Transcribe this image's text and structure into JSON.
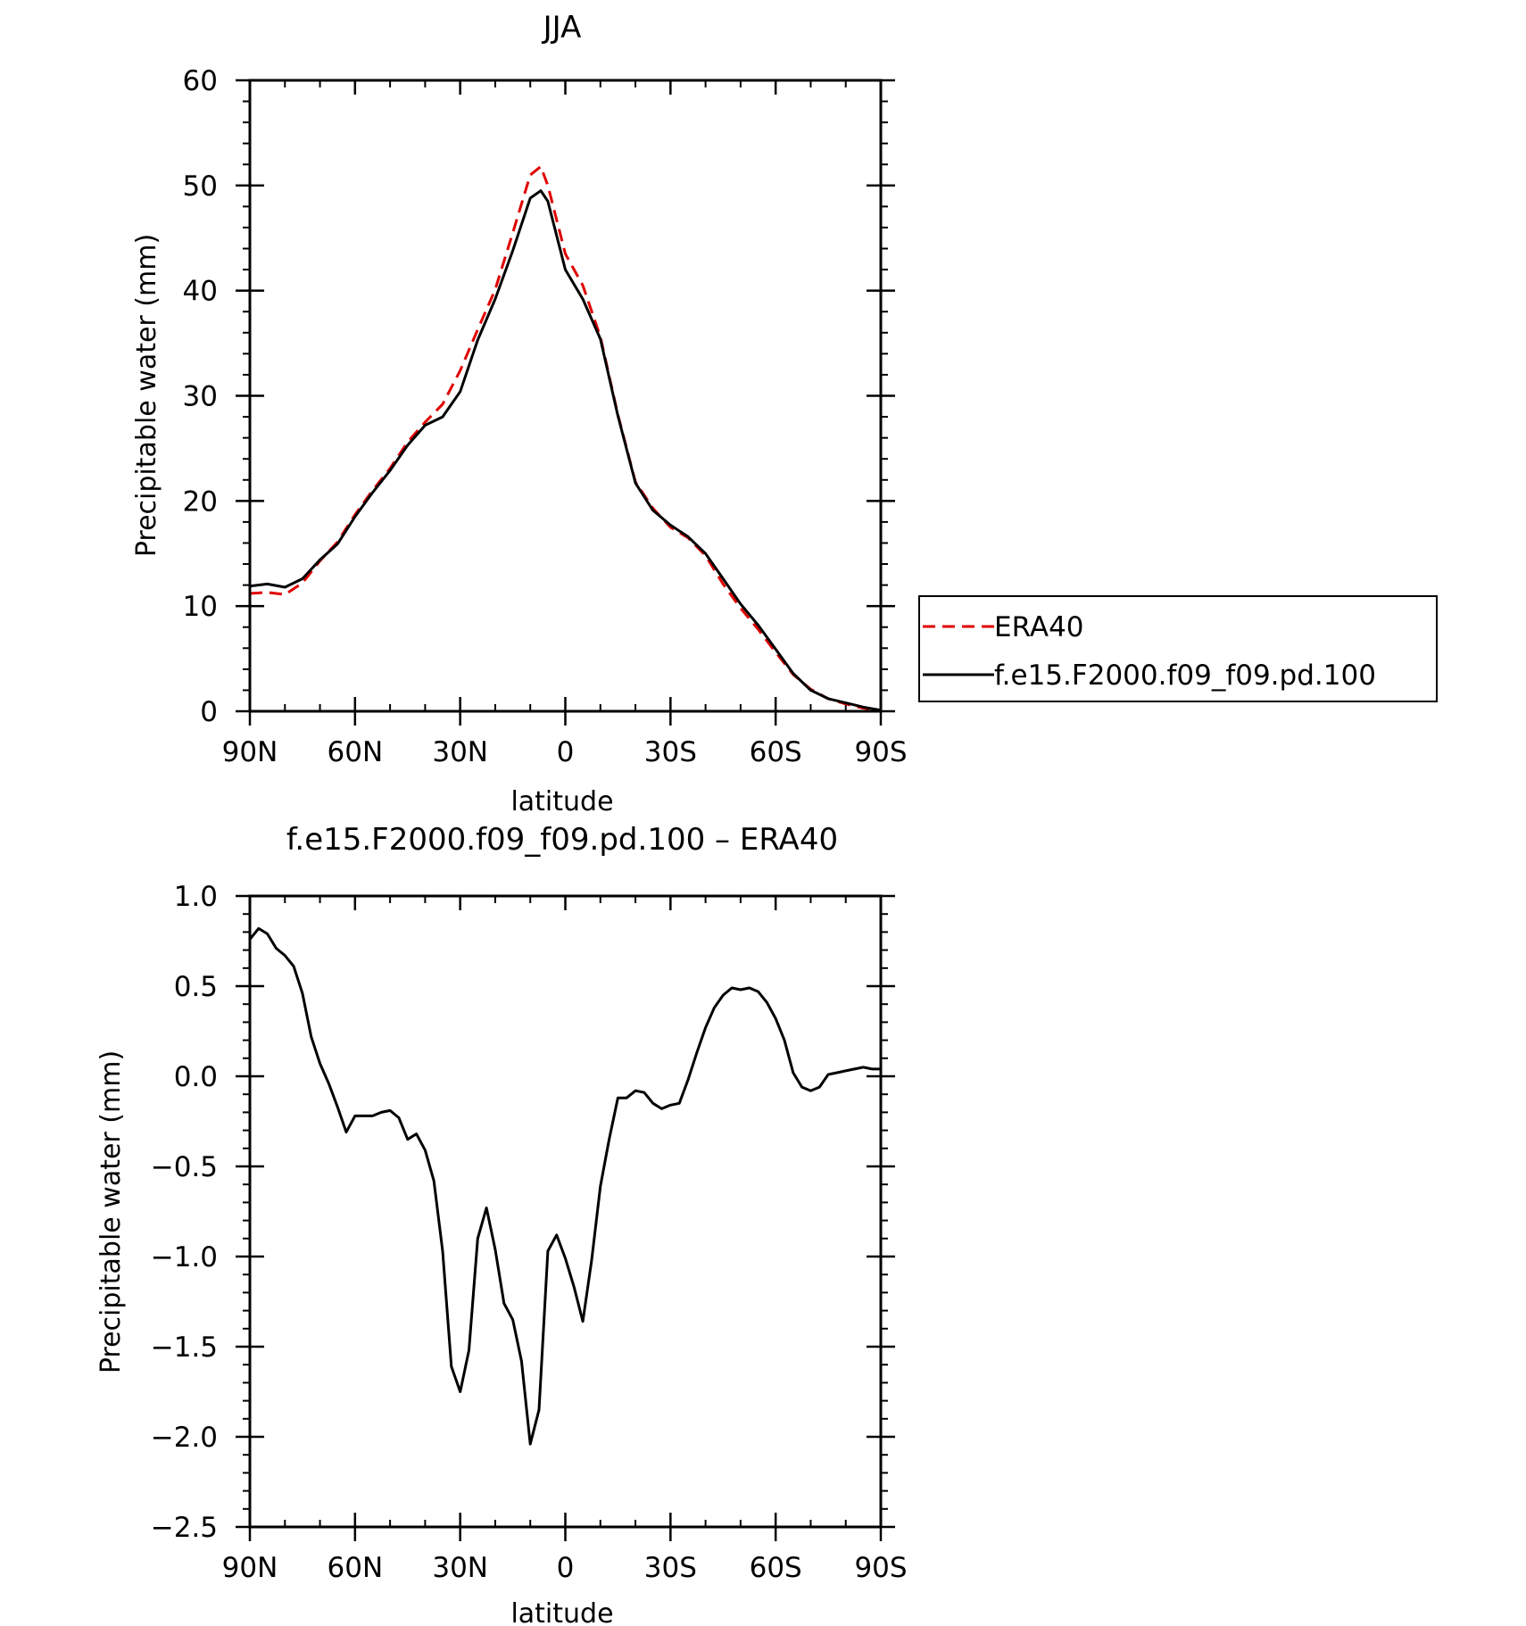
{
  "chart_data": [
    {
      "type": "line",
      "title": "JJA",
      "xlabel": "latitude",
      "ylabel": "Precipitable water (mm)",
      "xlim": [
        90,
        -90
      ],
      "ylim": [
        0,
        60
      ],
      "x_ticks": [
        90,
        60,
        30,
        0,
        -30,
        -60,
        -90
      ],
      "x_tick_labels": [
        "90N",
        "60N",
        "30N",
        "0",
        "30S",
        "60S",
        "90S"
      ],
      "y_ticks": [
        0,
        10,
        20,
        30,
        40,
        50,
        60
      ],
      "y_tick_labels": [
        "0",
        "10",
        "20",
        "30",
        "40",
        "50",
        "60"
      ],
      "legend": "outside-right",
      "grid": false,
      "series": [
        {
          "name": "ERA40",
          "color": "#e00000",
          "style": "dashed",
          "x": [
            90,
            85,
            80,
            75,
            70,
            65,
            60,
            55,
            50,
            45,
            40,
            35,
            30,
            25,
            20,
            15,
            10,
            7,
            5,
            0,
            -5,
            -10,
            -15,
            -20,
            -25,
            -30,
            -35,
            -40,
            -45,
            -50,
            -55,
            -60,
            -65,
            -70,
            -75,
            -80,
            -85,
            -90
          ],
          "y": [
            11.2,
            11.3,
            11.1,
            12.2,
            14.3,
            16.1,
            18.7,
            21.0,
            23.1,
            25.6,
            27.5,
            29.2,
            32.4,
            36.3,
            40.1,
            45.5,
            51.0,
            51.8,
            50.0,
            43.5,
            40.5,
            35.6,
            28.2,
            21.8,
            19.3,
            17.5,
            16.5,
            14.8,
            12.1,
            9.8,
            7.8,
            5.6,
            3.5,
            2.1,
            1.2,
            0.7,
            0.3,
            0.1
          ]
        },
        {
          "name": "f.e15.F2000.f09_f09.pd.100",
          "color": "#000000",
          "style": "solid",
          "x": [
            90,
            85,
            80,
            75,
            70,
            65,
            60,
            55,
            50,
            45,
            40,
            35,
            30,
            25,
            20,
            15,
            10,
            7,
            5,
            0,
            -5,
            -10,
            -15,
            -20,
            -25,
            -30,
            -35,
            -40,
            -45,
            -50,
            -55,
            -60,
            -65,
            -70,
            -75,
            -80,
            -85,
            -90
          ],
          "y": [
            11.9,
            12.1,
            11.8,
            12.6,
            14.4,
            15.9,
            18.5,
            20.8,
            22.9,
            25.3,
            27.2,
            28.0,
            30.4,
            35.3,
            39.2,
            43.8,
            48.8,
            49.5,
            48.5,
            42.0,
            39.2,
            35.4,
            28.1,
            21.7,
            19.1,
            17.7,
            16.6,
            15.0,
            12.6,
            10.2,
            8.2,
            5.9,
            3.6,
            2.0,
            1.2,
            0.8,
            0.4,
            0.1
          ]
        }
      ]
    },
    {
      "type": "line",
      "title": "f.e15.F2000.f09_f09.pd.100 – ERA40",
      "xlabel": "latitude",
      "ylabel": "Precipitable water (mm)",
      "xlim": [
        90,
        -90
      ],
      "ylim": [
        -2.5,
        1.0
      ],
      "x_ticks": [
        90,
        60,
        30,
        0,
        -30,
        -60,
        -90
      ],
      "x_tick_labels": [
        "90N",
        "60N",
        "30N",
        "0",
        "30S",
        "60S",
        "90S"
      ],
      "y_ticks": [
        1.0,
        0.5,
        0.0,
        -0.5,
        -1.0,
        -1.5,
        -2.0,
        -2.5
      ],
      "y_tick_labels": [
        "1.0",
        "0.5",
        "0.0",
        "−0.5",
        "−1.0",
        "−1.5",
        "−2.0",
        "−2.5"
      ],
      "grid": false,
      "series": [
        {
          "color": "#000000",
          "style": "solid",
          "x": [
            90,
            87.5,
            85,
            82.5,
            80,
            77.5,
            75,
            72.5,
            70,
            67.5,
            65,
            62.5,
            60,
            57.5,
            55,
            52.5,
            50,
            47.5,
            45,
            42.5,
            40,
            37.5,
            35,
            32.5,
            30,
            27.5,
            25,
            22.5,
            20,
            17.5,
            15,
            12.5,
            10,
            7.5,
            5,
            2.5,
            0,
            -2.5,
            -5,
            -7.5,
            -10,
            -12.5,
            -15,
            -17.5,
            -20,
            -22.5,
            -25,
            -27.5,
            -30,
            -32.5,
            -35,
            -37.5,
            -40,
            -42.5,
            -45,
            -47.5,
            -50,
            -52.5,
            -55,
            -57.5,
            -60,
            -62.5,
            -65,
            -67.5,
            -70,
            -72.5,
            -75,
            -77.5,
            -80,
            -82.5,
            -85,
            -87.5,
            -90
          ],
          "y": [
            0.76,
            0.82,
            0.79,
            0.71,
            0.67,
            0.61,
            0.46,
            0.22,
            0.07,
            -0.04,
            -0.17,
            -0.31,
            -0.22,
            -0.22,
            -0.22,
            -0.2,
            -0.19,
            -0.23,
            -0.35,
            -0.32,
            -0.41,
            -0.58,
            -0.97,
            -1.61,
            -1.75,
            -1.52,
            -0.9,
            -0.73,
            -0.96,
            -1.26,
            -1.35,
            -1.58,
            -2.04,
            -1.85,
            -0.97,
            -0.88,
            -1.01,
            -1.17,
            -1.36,
            -1.02,
            -0.61,
            -0.35,
            -0.12,
            -0.12,
            -0.08,
            -0.09,
            -0.15,
            -0.18,
            -0.16,
            -0.15,
            -0.02,
            0.13,
            0.27,
            0.38,
            0.45,
            0.49,
            0.48,
            0.49,
            0.47,
            0.41,
            0.32,
            0.2,
            0.02,
            -0.06,
            -0.08,
            -0.06,
            0.01,
            0.02,
            0.03,
            0.04,
            0.05,
            0.04,
            0.04
          ]
        }
      ]
    }
  ]
}
